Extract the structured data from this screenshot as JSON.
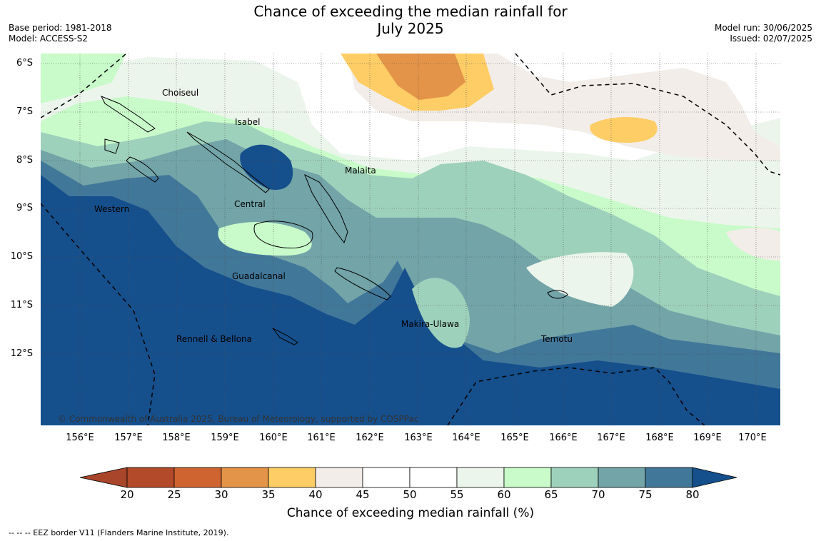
{
  "title_line1": "Chance of exceeding the median rainfall for",
  "title_line2": "July 2025",
  "meta_left": {
    "base_period": "Base period: 1981-2018",
    "model": "Model: ACCESS-S2"
  },
  "meta_right": {
    "model_run": "Model run: 30/06/2025",
    "issued": "Issued: 02/07/2025"
  },
  "copyright": "© Commonwealth of Australia 2025, Bureau of Meteorology, supported by COSPPac",
  "lat_labels": [
    "6°S",
    "7°S",
    "8°S",
    "9°S",
    "10°S",
    "11°S",
    "12°S"
  ],
  "lon_labels": [
    "156°E",
    "157°E",
    "158°E",
    "159°E",
    "160°E",
    "161°E",
    "162°E",
    "163°E",
    "164°E",
    "165°E",
    "166°E",
    "167°E",
    "168°E",
    "169°E",
    "170°E"
  ],
  "regions": [
    "Choiseul",
    "Isabel",
    "Malaita",
    "Central",
    "Western",
    "Guadalcanal",
    "Makira-Ulawa",
    "Temotu",
    "Rennell & Bellona"
  ],
  "colorbar": {
    "ticks": [
      "20",
      "25",
      "30",
      "35",
      "40",
      "45",
      "50",
      "55",
      "60",
      "65",
      "70",
      "75",
      "80"
    ],
    "label": "Chance of exceeding median rainfall (%)",
    "colors": [
      "#a9452a",
      "#b34a29",
      "#cf6430",
      "#e39448",
      "#fecd66",
      "#f2ede8",
      "#ffffff",
      "#ffffff",
      "#ecf5ec",
      "#c8fbc9",
      "#9ed1bc",
      "#72a4a8",
      "#417799",
      "#154f8c"
    ]
  },
  "footer": "--  --  -- EEZ border V11 (Flanders Marine Institute, 2019)."
}
